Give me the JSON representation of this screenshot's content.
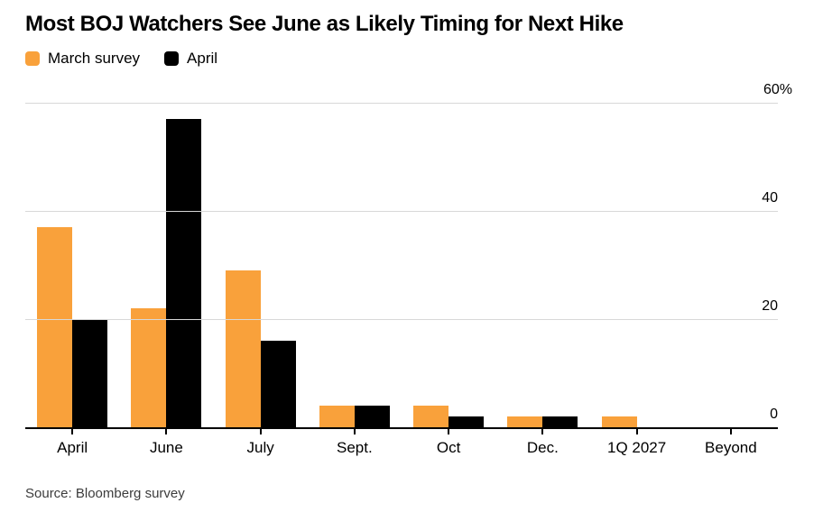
{
  "chart_data": {
    "type": "bar",
    "title": "Most BOJ Watchers See June as Likely Timing for Next Hike",
    "source": "Source: Bloomberg survey",
    "categories": [
      "April",
      "June",
      "July",
      "Sept.",
      "Oct",
      "Dec.",
      "1Q 2027",
      "Beyond"
    ],
    "series": [
      {
        "name": "March survey",
        "color": "#F9A13B",
        "values": [
          37,
          22,
          29,
          4,
          4,
          2,
          2,
          0
        ]
      },
      {
        "name": "April",
        "color": "#000000",
        "values": [
          20,
          57,
          16,
          4,
          2,
          2,
          0,
          0
        ]
      }
    ],
    "ylim": [
      0,
      60
    ],
    "y_ticks": [
      {
        "value": 60,
        "label": "60%"
      },
      {
        "value": 40,
        "label": "40"
      },
      {
        "value": 20,
        "label": "20"
      },
      {
        "value": 0,
        "label": "0"
      }
    ],
    "grid": true,
    "legend_position": "top-left",
    "colors": {
      "background": "#FFFFFF",
      "gridline": "#D8D8D8",
      "axis_line": "#000000",
      "text": "#000000"
    }
  }
}
